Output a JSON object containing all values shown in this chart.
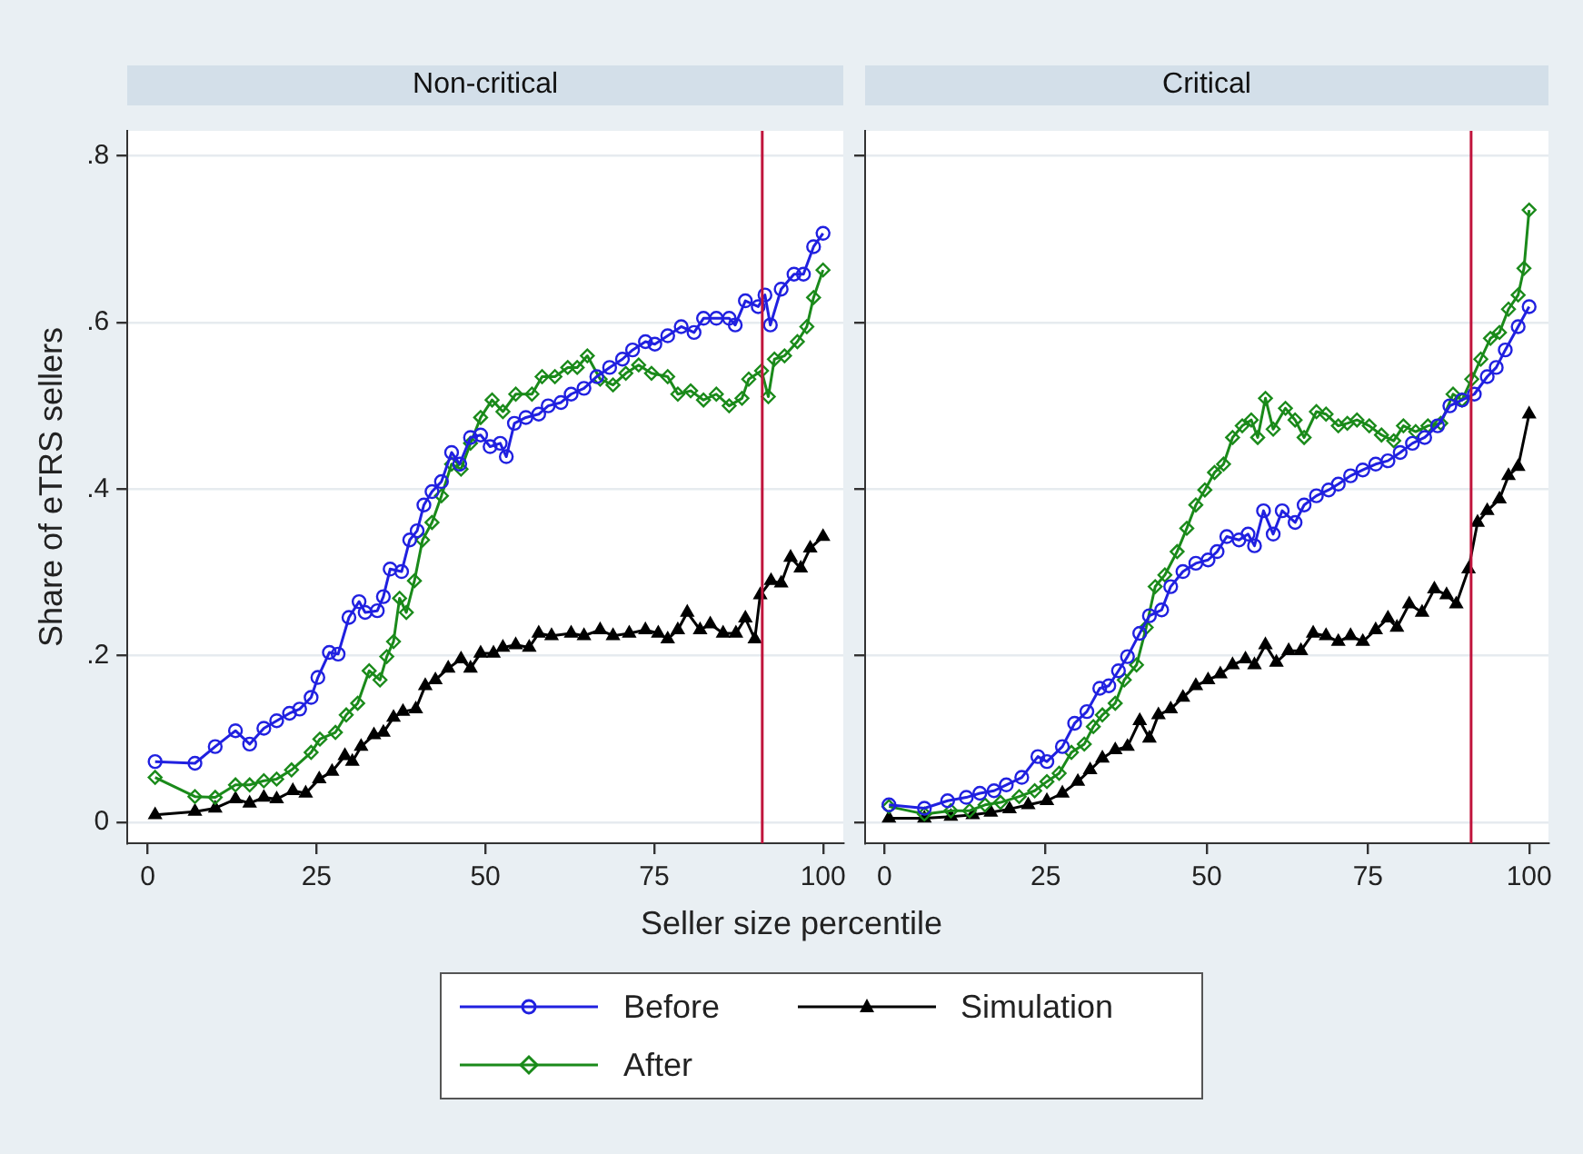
{
  "chart_data": [
    {
      "type": "line",
      "title": "Non-critical",
      "xlabel": "Seller size percentile",
      "ylabel": "Share of eTRS sellers",
      "xlim": [
        -3,
        103
      ],
      "xticks": [
        0,
        25,
        50,
        75,
        100
      ],
      "ylim": [
        -0.025,
        0.83
      ],
      "yticks": [
        0,
        {
          "value": 0.2,
          "label": ".2"
        },
        {
          "value": 0.4,
          "label": ".4"
        },
        {
          "value": 0.6,
          "label": ".6"
        },
        {
          "value": 0.8,
          "label": ".8"
        }
      ],
      "grid": "y",
      "legend": "bottom",
      "line_style": "solid",
      "ref_lines": [
        {
          "axis": "x",
          "value": 91,
          "color": "#c0143c"
        }
      ],
      "series": [
        {
          "name": "Before",
          "color": "#2020e0",
          "marker": "circle",
          "x": [
            1.1,
            7,
            10,
            13,
            15.1,
            17.2,
            19.1,
            21,
            22.5,
            24.2,
            25.2,
            26.9,
            28.2,
            29.8,
            31.3,
            32.2,
            34,
            34.9,
            35.9,
            37.6,
            38.8,
            39.9,
            40.9,
            42.1,
            43.5,
            45,
            46.2,
            47.8,
            49.3,
            50.7,
            52.2,
            53.1,
            54.3,
            56,
            57.9,
            59.3,
            61.2,
            62.7,
            64.6,
            66.5,
            68.4,
            70.3,
            71.8,
            73.7,
            75.1,
            77,
            79,
            80.9,
            82.3,
            84.2,
            86.1,
            87,
            88.5,
            90.4,
            91.4,
            92.2,
            93.8,
            95.7,
            97.1,
            98.6,
            100
          ],
          "values": [
            0.073,
            0.071,
            0.091,
            0.11,
            0.094,
            0.113,
            0.122,
            0.131,
            0.136,
            0.15,
            0.174,
            0.204,
            0.202,
            0.246,
            0.265,
            0.252,
            0.254,
            0.271,
            0.304,
            0.301,
            0.339,
            0.35,
            0.381,
            0.397,
            0.409,
            0.444,
            0.43,
            0.462,
            0.465,
            0.451,
            0.455,
            0.439,
            0.479,
            0.486,
            0.49,
            0.5,
            0.504,
            0.514,
            0.521,
            0.535,
            0.546,
            0.556,
            0.567,
            0.577,
            0.574,
            0.584,
            0.595,
            0.588,
            0.605,
            0.605,
            0.605,
            0.597,
            0.626,
            0.619,
            0.633,
            0.597,
            0.64,
            0.658,
            0.658,
            0.691,
            0.707
          ]
        },
        {
          "name": "After",
          "color": "#1a8a1a",
          "marker": "diamond",
          "x": [
            1.1,
            7,
            10,
            13,
            15.1,
            17.2,
            19.1,
            21.3,
            24.2,
            25.5,
            27.8,
            29.4,
            31.1,
            32.8,
            34.4,
            35.4,
            36.4,
            37.3,
            38.3,
            39.5,
            40.7,
            42.1,
            43.5,
            45,
            46.4,
            47.8,
            49.3,
            51,
            52.6,
            54.5,
            56.9,
            58.4,
            60.3,
            62.2,
            63.6,
            65.1,
            67,
            68.9,
            70.8,
            72.7,
            74.6,
            77,
            78.5,
            80.4,
            82.3,
            84.2,
            86.1,
            88,
            89,
            90.9,
            91.9,
            92.8,
            94.3,
            96.2,
            97.6,
            98.6,
            100
          ],
          "values": [
            0.054,
            0.031,
            0.03,
            0.045,
            0.045,
            0.05,
            0.052,
            0.063,
            0.084,
            0.1,
            0.108,
            0.129,
            0.143,
            0.182,
            0.171,
            0.199,
            0.217,
            0.269,
            0.252,
            0.29,
            0.339,
            0.36,
            0.392,
            0.43,
            0.424,
            0.455,
            0.486,
            0.507,
            0.493,
            0.514,
            0.514,
            0.535,
            0.535,
            0.546,
            0.546,
            0.56,
            0.532,
            0.525,
            0.539,
            0.549,
            0.539,
            0.535,
            0.514,
            0.518,
            0.507,
            0.514,
            0.5,
            0.509,
            0.532,
            0.542,
            0.511,
            0.556,
            0.56,
            0.577,
            0.595,
            0.63,
            0.663
          ]
        },
        {
          "name": "Simulation",
          "color": "#000000",
          "marker": "triangle",
          "x": [
            1.1,
            7,
            10,
            13,
            15.1,
            17.2,
            19.1,
            21.5,
            23.4,
            25.4,
            27.3,
            29.2,
            30.3,
            31.6,
            33.5,
            34.9,
            36.4,
            37.8,
            39.7,
            41.1,
            42.6,
            44.5,
            46.4,
            47.8,
            49.3,
            51.2,
            52.6,
            54.5,
            56.5,
            57.9,
            59.8,
            62.7,
            64.6,
            67,
            68.9,
            71.3,
            73.7,
            75.6,
            77,
            78.5,
            79.9,
            81.8,
            83.3,
            85.2,
            87.1,
            88.5,
            89.9,
            90.7,
            92.3,
            93.8,
            95.2,
            96.7,
            98.1,
            100
          ],
          "values": [
            0.009,
            0.013,
            0.017,
            0.028,
            0.023,
            0.03,
            0.028,
            0.038,
            0.035,
            0.052,
            0.061,
            0.08,
            0.073,
            0.091,
            0.105,
            0.108,
            0.126,
            0.133,
            0.136,
            0.164,
            0.171,
            0.185,
            0.196,
            0.185,
            0.203,
            0.203,
            0.21,
            0.213,
            0.21,
            0.227,
            0.224,
            0.227,
            0.224,
            0.231,
            0.224,
            0.227,
            0.231,
            0.227,
            0.22,
            0.231,
            0.252,
            0.231,
            0.238,
            0.227,
            0.227,
            0.245,
            0.22,
            0.273,
            0.29,
            0.287,
            0.318,
            0.305,
            0.329,
            0.343
          ]
        }
      ]
    },
    {
      "type": "line",
      "title": "Critical",
      "xlim": [
        -3,
        103
      ],
      "xticks": [
        0,
        25,
        50,
        75,
        100
      ],
      "ylim": [
        -0.025,
        0.83
      ],
      "yticks": [
        {
          "value": 0,
          "label": null
        },
        {
          "value": 0.2,
          "label": null
        },
        {
          "value": 0.4,
          "label": null
        },
        {
          "value": 0.6,
          "label": null
        },
        {
          "value": 0.8,
          "label": null
        }
      ],
      "grid": "y",
      "tick_labels": "x",
      "line_style": "solid",
      "ref_lines": [
        {
          "axis": "x",
          "value": 91,
          "color": "#c0143c"
        }
      ],
      "series": [
        {
          "color": "#2020e0",
          "marker": "circle",
          "x": [
            0.7,
            6.2,
            9.8,
            12.7,
            14.8,
            17,
            18.9,
            21.3,
            23.8,
            25.2,
            27.6,
            29.5,
            31.4,
            33.4,
            34.8,
            36.3,
            37.7,
            39.6,
            41.1,
            43,
            44.4,
            46.3,
            48.3,
            50.2,
            51.6,
            53.1,
            55,
            56.4,
            57.4,
            58.8,
            60.3,
            61.7,
            63.7,
            65.1,
            67,
            68.9,
            70.4,
            72.3,
            74.2,
            76.2,
            78.1,
            80,
            81.9,
            83.8,
            85.8,
            87.7,
            89.6,
            91.5,
            93.5,
            94.9,
            96.3,
            98.3,
            100
          ],
          "values": [
            0.021,
            0.017,
            0.026,
            0.03,
            0.035,
            0.038,
            0.045,
            0.054,
            0.079,
            0.073,
            0.091,
            0.119,
            0.133,
            0.161,
            0.164,
            0.182,
            0.199,
            0.227,
            0.248,
            0.255,
            0.283,
            0.301,
            0.311,
            0.315,
            0.325,
            0.343,
            0.339,
            0.346,
            0.332,
            0.374,
            0.346,
            0.374,
            0.36,
            0.381,
            0.392,
            0.399,
            0.406,
            0.416,
            0.423,
            0.43,
            0.434,
            0.444,
            0.455,
            0.462,
            0.476,
            0.5,
            0.507,
            0.514,
            0.535,
            0.546,
            0.567,
            0.595,
            0.619
          ]
        },
        {
          "color": "#1a8a1a",
          "marker": "diamond",
          "x": [
            0.7,
            6.2,
            10.3,
            13.2,
            15.6,
            18,
            20.9,
            23.3,
            25.2,
            27.1,
            29,
            31,
            32.4,
            33.8,
            35.8,
            37.2,
            39.1,
            40.6,
            42,
            43.5,
            45.4,
            46.9,
            48.3,
            49.7,
            51.2,
            52.6,
            54,
            55.5,
            56.9,
            57.9,
            59.1,
            60.3,
            62.2,
            63.7,
            65.1,
            67,
            68.5,
            70.4,
            71.8,
            73.3,
            75.2,
            77.1,
            79,
            80.5,
            82.4,
            84.3,
            86.3,
            88.2,
            89.6,
            91.1,
            92.5,
            94,
            95.4,
            96.8,
            98.3,
            99.2,
            100
          ],
          "values": [
            0.019,
            0.01,
            0.014,
            0.014,
            0.021,
            0.024,
            0.031,
            0.038,
            0.049,
            0.059,
            0.084,
            0.094,
            0.115,
            0.129,
            0.143,
            0.171,
            0.189,
            0.234,
            0.283,
            0.297,
            0.325,
            0.353,
            0.381,
            0.399,
            0.42,
            0.43,
            0.462,
            0.476,
            0.483,
            0.462,
            0.509,
            0.472,
            0.497,
            0.483,
            0.462,
            0.493,
            0.49,
            0.476,
            0.479,
            0.483,
            0.476,
            0.465,
            0.458,
            0.476,
            0.469,
            0.476,
            0.479,
            0.514,
            0.507,
            0.532,
            0.556,
            0.581,
            0.588,
            0.616,
            0.633,
            0.665,
            0.735
          ]
        },
        {
          "color": "#000000",
          "marker": "triangle",
          "x": [
            0.7,
            6.2,
            10.3,
            13.7,
            16.5,
            19.4,
            22.3,
            25.2,
            27.6,
            30,
            31.9,
            33.8,
            35.8,
            37.7,
            39.6,
            41.1,
            42.5,
            44.4,
            46.3,
            48.3,
            50.2,
            52.1,
            54,
            56,
            57.4,
            59.1,
            60.8,
            62.7,
            64.6,
            66.5,
            68.5,
            70.4,
            72.3,
            74.2,
            76.2,
            78.1,
            79.5,
            81.4,
            83.4,
            85.3,
            87.2,
            88.7,
            90.6,
            92,
            93.5,
            95.4,
            96.8,
            98.3,
            100
          ],
          "values": [
            0.005,
            0.005,
            0.007,
            0.009,
            0.012,
            0.016,
            0.021,
            0.026,
            0.035,
            0.049,
            0.063,
            0.077,
            0.087,
            0.091,
            0.122,
            0.101,
            0.129,
            0.136,
            0.15,
            0.164,
            0.171,
            0.178,
            0.189,
            0.196,
            0.189,
            0.213,
            0.192,
            0.206,
            0.206,
            0.227,
            0.224,
            0.217,
            0.224,
            0.217,
            0.231,
            0.245,
            0.234,
            0.262,
            0.252,
            0.28,
            0.273,
            0.262,
            0.304,
            0.36,
            0.374,
            0.388,
            0.416,
            0.427,
            0.49
          ]
        }
      ]
    }
  ]
}
